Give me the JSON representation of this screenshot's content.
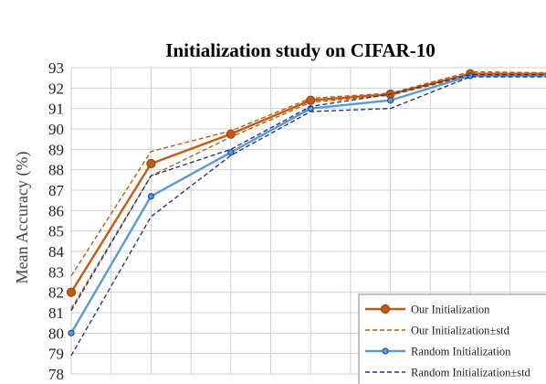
{
  "chart_data": {
    "type": "line",
    "title": "Initialization study on CIFAR-10",
    "xlabel": "",
    "ylabel": "Mean Accuracy (%)",
    "ylim": [
      78,
      93
    ],
    "yticks": [
      78,
      79,
      80,
      81,
      82,
      83,
      84,
      85,
      86,
      87,
      88,
      89,
      90,
      91,
      92,
      93
    ],
    "x": [
      1,
      2,
      3,
      4,
      5,
      6,
      7
    ],
    "grid": true,
    "legend_position": "bottom-right",
    "colors": {
      "our": "#C55A11",
      "random": "#5B9BD5",
      "random_std": "#1F3A8C"
    },
    "series": [
      {
        "name": "Our Initialization",
        "style": "solid-marker",
        "values": [
          82.0,
          88.3,
          89.75,
          91.4,
          91.7,
          92.7,
          92.7
        ]
      },
      {
        "name": "Our Initialization±std",
        "style": "dashed",
        "values": [
          82.8,
          88.9,
          89.9,
          91.5,
          91.75,
          92.8,
          92.75
        ]
      },
      {
        "name": "",
        "style": "dashed",
        "values": [
          81.2,
          87.7,
          89.6,
          91.3,
          91.65,
          92.6,
          92.65
        ]
      },
      {
        "name": "Random Initialization",
        "style": "solid-marker",
        "values": [
          80.0,
          86.7,
          88.85,
          91.0,
          91.4,
          92.6,
          92.6
        ]
      },
      {
        "name": "Random Initialization±std",
        "style": "dashed",
        "values": [
          78.9,
          85.7,
          88.7,
          90.85,
          91.0,
          92.55,
          92.55
        ]
      },
      {
        "name": "",
        "style": "dashed",
        "values": [
          81.1,
          87.7,
          89.0,
          91.1,
          91.7,
          92.65,
          92.65
        ]
      }
    ]
  }
}
